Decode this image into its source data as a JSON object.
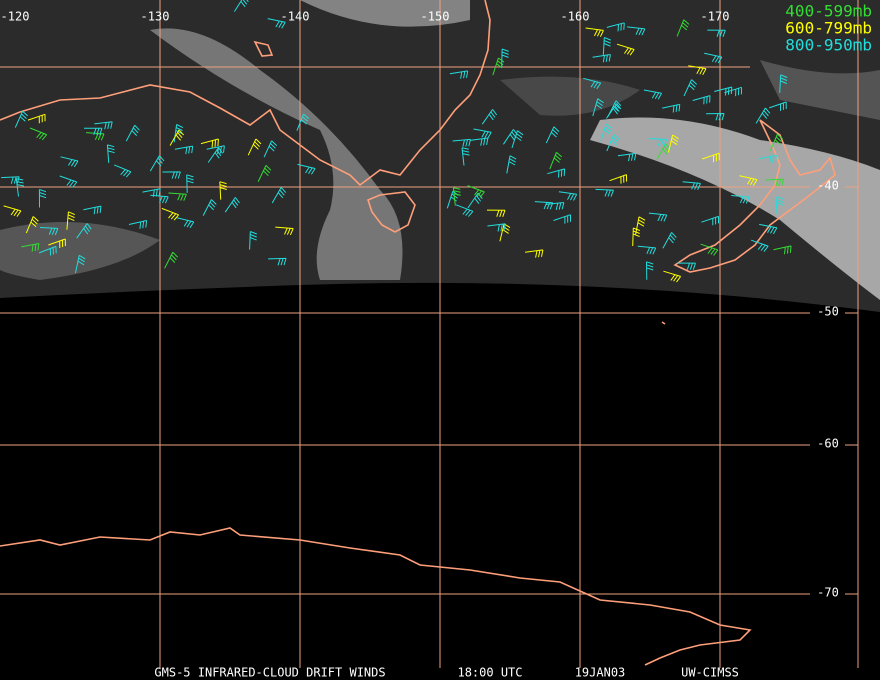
{
  "map": {
    "longitude_labels": [
      "-120",
      "-130",
      "-140",
      "-150",
      "-160",
      "-170"
    ],
    "latitude_labels": [
      "-40",
      "-50",
      "-60",
      "-70"
    ],
    "legend": [
      {
        "label": "400-599mb",
        "color": "#33dd33"
      },
      {
        "label": "600-799mb",
        "color": "#ffff00"
      },
      {
        "label": "800-950mb",
        "color": "#22dddd"
      }
    ],
    "footer": [
      "GMS-5 INFRARED-CLOUD DRIFT WINDS",
      "18:00 UTC",
      "19JAN03",
      "UW-CIMSS"
    ]
  }
}
